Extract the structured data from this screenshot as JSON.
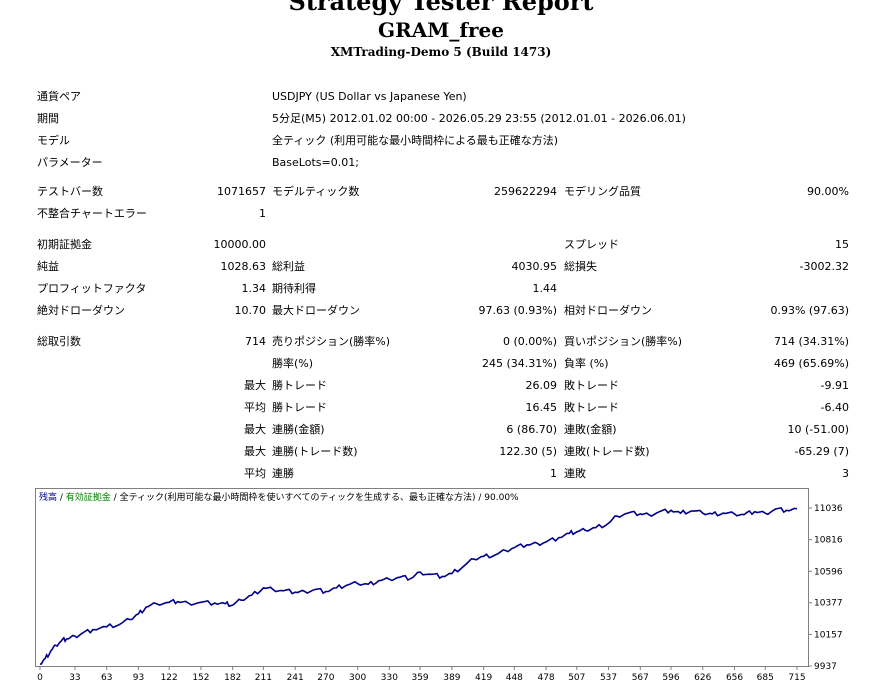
{
  "header": {
    "title": "Strategy Tester Report",
    "ea_name": "GRAM_free",
    "server": "XMTrading-Demo 5 (Build 1473)"
  },
  "info": {
    "symbol_label": "通貨ペア",
    "symbol_value": "USDJPY (US Dollar vs Japanese Yen)",
    "period_label": "期間",
    "period_value": "5分足(M5) 2012.01.02 00:00 - 2026.05.29 23:55 (2012.01.01 - 2026.06.01)",
    "model_label": "モデル",
    "model_value": "全ティック (利用可能な最小時間枠による最も正確な方法)",
    "params_label": "パラメーター",
    "params_value": "BaseLots=0.01;"
  },
  "stats": {
    "bars_label": "テストバー数",
    "bars_value": "1071657",
    "ticks_label": "モデルティック数",
    "ticks_value": "259622294",
    "quality_label": "モデリング品質",
    "quality_value": "90.00%",
    "mismatch_label": "不整合チャートエラー",
    "mismatch_value": "1",
    "deposit_label": "初期証拠金",
    "deposit_value": "10000.00",
    "spread_label": "スプレッド",
    "spread_value": "15",
    "net_label": "純益",
    "net_value": "1028.63",
    "gross_profit_label": "総利益",
    "gross_profit_value": "4030.95",
    "gross_loss_label": "総損失",
    "gross_loss_value": "-3002.32",
    "pf_label": "プロフィットファクタ",
    "pf_value": "1.34",
    "payoff_label": "期待利得",
    "payoff_value": "1.44",
    "abs_dd_label": "絶対ドローダウン",
    "abs_dd_value": "10.70",
    "max_dd_label": "最大ドローダウン",
    "max_dd_value": "97.63 (0.93%)",
    "rel_dd_label": "相対ドローダウン",
    "rel_dd_value": "0.93% (97.63)",
    "trades_label": "総取引数",
    "trades_value": "714",
    "short_label": "売りポジション(勝率%)",
    "short_value": "0 (0.00%)",
    "long_label": "買いポジション(勝率%)",
    "long_value": "714 (34.31%)",
    "winpct_label": "勝率(%)",
    "winpct_value": "245 (34.31%)",
    "losspct_label": "負率 (%)",
    "losspct_value": "469 (65.69%)",
    "max1_label": "最大",
    "largest_win_label": "勝トレード",
    "largest_win_value": "26.09",
    "largest_loss_label": "敗トレード",
    "largest_loss_value": "-9.91",
    "avg1_label": "平均",
    "avg_win_label": "勝トレード",
    "avg_win_value": "16.45",
    "avg_loss_label": "敗トレード",
    "avg_loss_value": "-6.40",
    "max2_label": "最大",
    "cons_wins_amt_label": "連勝(金額)",
    "cons_wins_amt_value": "6 (86.70)",
    "cons_loss_amt_label": "連敗(金額)",
    "cons_loss_amt_value": "10 (-51.00)",
    "max3_label": "最大",
    "cons_wins_cnt_label": "連勝(トレード数)",
    "cons_wins_cnt_value": "122.30 (5)",
    "cons_loss_cnt_label": "連敗(トレード数)",
    "cons_loss_cnt_value": "-65.29 (7)",
    "avg2_label": "平均",
    "avg_cons_win_label": "連勝",
    "avg_cons_win_value": "1",
    "avg_cons_loss_label": "連敗",
    "avg_cons_loss_value": "3"
  },
  "chart_data": {
    "type": "line",
    "legend": {
      "balance": "残高",
      "sep1": " / ",
      "margin": "有効証拠金",
      "sep2": " / ",
      "model": "全ティック(利用可能な最小時間枠を使いすべてのティックを生成する、最も正確な方法)",
      "sep3": " / ",
      "quality": "90.00%"
    },
    "x_ticks": [
      "0",
      "33",
      "63",
      "93",
      "122",
      "152",
      "182",
      "211",
      "241",
      "270",
      "300",
      "330",
      "359",
      "389",
      "419",
      "448",
      "478",
      "507",
      "537",
      "567",
      "596",
      "626",
      "656",
      "685",
      "715"
    ],
    "y_ticks": [
      "11036",
      "10816",
      "10596",
      "10377",
      "10157",
      "9937"
    ],
    "ylim": [
      9937,
      11036
    ],
    "xlim": [
      0,
      715
    ],
    "series": [
      {
        "color": "#00008b",
        "x": [
          0,
          5,
          10,
          15,
          20,
          25,
          33,
          40,
          50,
          63,
          75,
          85,
          93,
          100,
          110,
          122,
          130,
          140,
          152,
          165,
          175,
          182,
          190,
          200,
          211,
          220,
          230,
          241,
          250,
          260,
          270,
          280,
          290,
          300,
          310,
          320,
          330,
          340,
          350,
          359,
          370,
          380,
          389,
          400,
          410,
          419,
          430,
          440,
          448,
          460,
          470,
          478,
          490,
          500,
          507,
          515,
          525,
          537,
          545,
          555,
          567,
          575,
          585,
          596,
          605,
          615,
          626,
          635,
          645,
          656,
          665,
          675,
          685,
          695,
          705,
          715
        ],
        "y": [
          9950,
          9990,
          10040,
          10080,
          10110,
          10125,
          10145,
          10165,
          10190,
          10210,
          10225,
          10260,
          10300,
          10345,
          10370,
          10380,
          10385,
          10375,
          10380,
          10375,
          10370,
          10360,
          10395,
          10430,
          10480,
          10470,
          10460,
          10450,
          10455,
          10470,
          10455,
          10480,
          10500,
          10510,
          10505,
          10530,
          10540,
          10555,
          10545,
          10590,
          10575,
          10560,
          10580,
          10630,
          10680,
          10700,
          10710,
          10740,
          10760,
          10780,
          10790,
          10800,
          10830,
          10860,
          10870,
          10880,
          10900,
          10930,
          10980,
          11000,
          10995,
          10990,
          11010,
          11020,
          11000,
          11015,
          11000,
          10995,
          11000,
          10995,
          10990,
          11010,
          11000,
          11030,
          11020,
          11030
        ]
      }
    ]
  }
}
